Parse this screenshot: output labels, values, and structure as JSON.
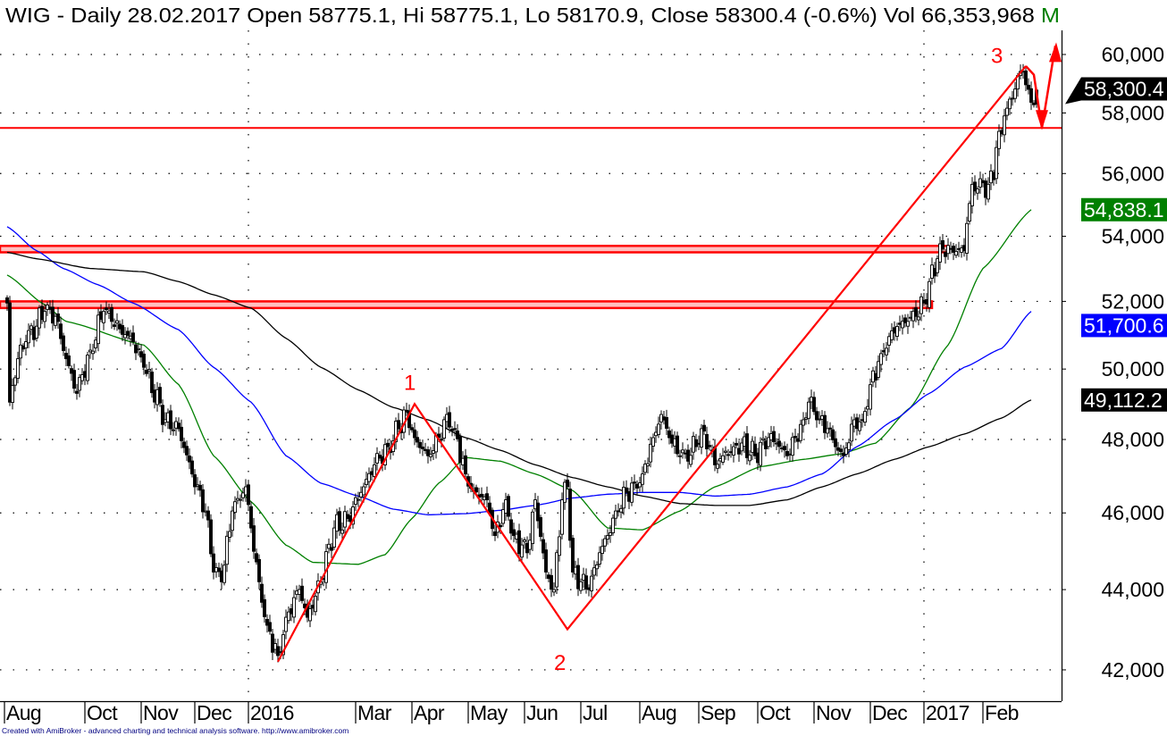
{
  "header": {
    "title": "WIG - Daily 28.02.2017 Open 58775.1, Hi 58775.1, Lo 58170.9, Close 58300.4 (-0.6%) Vol 66,353,968",
    "trailing": "M",
    "trailing_color": "#008000"
  },
  "footer": "Created with AmiBroker - advanced charting and technical analysis software. http://www.amibroker.com",
  "chart_data": {
    "type": "candlestick",
    "title": "WIG - Daily",
    "scale": "log",
    "ylim": [
      41700,
      60800
    ],
    "yticks": [
      {
        "value": 60000,
        "label": "60,000"
      },
      {
        "value": 58000,
        "label": "58,000"
      },
      {
        "value": 56000,
        "label": "56,000"
      },
      {
        "value": 54000,
        "label": "54,000"
      },
      {
        "value": 52000,
        "label": "52,000"
      },
      {
        "value": 50000,
        "label": "50,000"
      },
      {
        "value": 48000,
        "label": "48,000"
      },
      {
        "value": 46000,
        "label": "46,000"
      },
      {
        "value": 44000,
        "label": "44,000"
      },
      {
        "value": 42000,
        "label": "42,000"
      }
    ],
    "xticks": [
      {
        "day": 0,
        "label": "Aug"
      },
      {
        "day": 30,
        "label": "Oct"
      },
      {
        "day": 51,
        "label": "Nov"
      },
      {
        "day": 71,
        "label": "Dec"
      },
      {
        "day": 91,
        "label": "2016"
      },
      {
        "day": 131,
        "label": "Mar"
      },
      {
        "day": 152,
        "label": "Apr"
      },
      {
        "day": 173,
        "label": "May"
      },
      {
        "day": 194,
        "label": "Jun"
      },
      {
        "day": 215,
        "label": "Jul"
      },
      {
        "day": 237,
        "label": "Aug"
      },
      {
        "day": 259,
        "label": "Sep"
      },
      {
        "day": 281,
        "label": "Oct"
      },
      {
        "day": 302,
        "label": "Nov"
      },
      {
        "day": 323,
        "label": "Dec"
      },
      {
        "day": 343,
        "label": "2017"
      },
      {
        "day": 365,
        "label": "Feb"
      }
    ],
    "year_gridlines_days": [
      91,
      343
    ],
    "total_days": 385,
    "close_anchors": [
      [
        0,
        51950
      ],
      [
        1,
        49050
      ],
      [
        4,
        50300
      ],
      [
        7,
        50800
      ],
      [
        14,
        51700
      ],
      [
        18,
        51550
      ],
      [
        22,
        50300
      ],
      [
        26,
        49300
      ],
      [
        31,
        50550
      ],
      [
        36,
        51700
      ],
      [
        39,
        51400
      ],
      [
        47,
        50800
      ],
      [
        51,
        50050
      ],
      [
        59,
        48550
      ],
      [
        64,
        48300
      ],
      [
        69,
        47050
      ],
      [
        74,
        46050
      ],
      [
        77,
        44450
      ],
      [
        80,
        44200
      ],
      [
        84,
        46050
      ],
      [
        89,
        46700
      ],
      [
        91,
        45600
      ],
      [
        94,
        44200
      ],
      [
        97,
        43100
      ],
      [
        101,
        42350
      ],
      [
        104,
        43300
      ],
      [
        109,
        44000
      ],
      [
        112,
        43300
      ],
      [
        117,
        44200
      ],
      [
        122,
        45600
      ],
      [
        127,
        45850
      ],
      [
        132,
        46550
      ],
      [
        137,
        47300
      ],
      [
        142,
        47800
      ],
      [
        146,
        48300
      ],
      [
        149,
        48800
      ],
      [
        152,
        48050
      ],
      [
        157,
        47550
      ],
      [
        161,
        48050
      ],
      [
        164,
        48700
      ],
      [
        167,
        48300
      ],
      [
        171,
        47050
      ],
      [
        174,
        46600
      ],
      [
        179,
        46350
      ],
      [
        182,
        45400
      ],
      [
        186,
        46350
      ],
      [
        189,
        45400
      ],
      [
        194,
        44950
      ],
      [
        197,
        46350
      ],
      [
        201,
        44450
      ],
      [
        204,
        44000
      ],
      [
        207,
        46350
      ],
      [
        209,
        46700
      ],
      [
        211,
        44450
      ],
      [
        214,
        44200
      ],
      [
        217,
        44000
      ],
      [
        221,
        44950
      ],
      [
        224,
        45400
      ],
      [
        227,
        46050
      ],
      [
        231,
        46550
      ],
      [
        234,
        46800
      ],
      [
        237,
        47050
      ],
      [
        241,
        48050
      ],
      [
        244,
        48700
      ],
      [
        247,
        48050
      ],
      [
        251,
        47550
      ],
      [
        254,
        47400
      ],
      [
        259,
        48300
      ],
      [
        262,
        47800
      ],
      [
        264,
        47300
      ],
      [
        267,
        47550
      ],
      [
        271,
        47800
      ],
      [
        274,
        47900
      ],
      [
        279,
        47550
      ],
      [
        284,
        48050
      ],
      [
        287,
        47900
      ],
      [
        291,
        47550
      ],
      [
        294,
        48050
      ],
      [
        297,
        48550
      ],
      [
        299,
        49050
      ],
      [
        302,
        48550
      ],
      [
        306,
        48300
      ],
      [
        309,
        47800
      ],
      [
        312,
        47550
      ],
      [
        316,
        48550
      ],
      [
        319,
        48550
      ],
      [
        322,
        49550
      ],
      [
        326,
        50450
      ],
      [
        329,
        50950
      ],
      [
        332,
        51250
      ],
      [
        336,
        51400
      ],
      [
        339,
        51550
      ],
      [
        342,
        51950
      ],
      [
        344,
        52600
      ],
      [
        347,
        53300
      ],
      [
        349,
        53600
      ],
      [
        352,
        53600
      ],
      [
        357,
        53550
      ],
      [
        358,
        54400
      ],
      [
        360,
        55650
      ],
      [
        362,
        55500
      ],
      [
        366,
        55650
      ],
      [
        368,
        55800
      ],
      [
        369,
        56850
      ],
      [
        371,
        57300
      ],
      [
        372,
        57900
      ],
      [
        375,
        58500
      ],
      [
        377,
        59270
      ],
      [
        379,
        59420
      ],
      [
        381,
        58800
      ],
      [
        382,
        58360
      ],
      [
        384,
        58300.4
      ]
    ],
    "last_bar": {
      "date": "28.02.2017",
      "open": 58775.1,
      "high": 58775.1,
      "low": 58170.9,
      "close": 58300.4,
      "change_pct": -0.6,
      "volume": 66353968
    },
    "series": [
      {
        "name": "MA short",
        "color": "#008000",
        "last_value_label": "54,838.1",
        "last_value": 54838.1,
        "points": [
          [
            0,
            52800
          ],
          [
            14,
            51900
          ],
          [
            22,
            51400
          ],
          [
            51,
            50700
          ],
          [
            64,
            49550
          ],
          [
            77,
            47550
          ],
          [
            91,
            46300
          ],
          [
            104,
            45150
          ],
          [
            114,
            44700
          ],
          [
            131,
            44650
          ],
          [
            141,
            44900
          ],
          [
            151,
            45850
          ],
          [
            161,
            46800
          ],
          [
            171,
            47500
          ],
          [
            184,
            47400
          ],
          [
            197,
            47050
          ],
          [
            211,
            46600
          ],
          [
            224,
            45600
          ],
          [
            237,
            45550
          ],
          [
            251,
            46050
          ],
          [
            264,
            46700
          ],
          [
            281,
            47250
          ],
          [
            297,
            47450
          ],
          [
            311,
            47600
          ],
          [
            324,
            47900
          ],
          [
            337,
            48900
          ],
          [
            351,
            50700
          ],
          [
            364,
            53000
          ],
          [
            382,
            54838.1
          ]
        ]
      },
      {
        "name": "MA medium",
        "color": "#0000ff",
        "last_value_label": "51,700.6",
        "last_value": 51700.6,
        "points": [
          [
            0,
            54300
          ],
          [
            11,
            53550
          ],
          [
            21,
            53000
          ],
          [
            34,
            52500
          ],
          [
            47,
            51950
          ],
          [
            64,
            51150
          ],
          [
            77,
            50050
          ],
          [
            91,
            49050
          ],
          [
            104,
            47550
          ],
          [
            117,
            46800
          ],
          [
            131,
            46450
          ],
          [
            144,
            46100
          ],
          [
            157,
            45950
          ],
          [
            171,
            45980
          ],
          [
            184,
            46070
          ],
          [
            197,
            46200
          ],
          [
            211,
            46400
          ],
          [
            224,
            46500
          ],
          [
            237,
            46550
          ],
          [
            251,
            46550
          ],
          [
            264,
            46450
          ],
          [
            277,
            46500
          ],
          [
            291,
            46700
          ],
          [
            304,
            47050
          ],
          [
            317,
            47800
          ],
          [
            331,
            48550
          ],
          [
            344,
            49300
          ],
          [
            357,
            50050
          ],
          [
            371,
            50600
          ],
          [
            382,
            51700.6
          ]
        ]
      },
      {
        "name": "MA long",
        "color": "#000000",
        "last_value_label": "49,112.2",
        "last_value": 49112.2,
        "points": [
          [
            0,
            53500
          ],
          [
            11,
            53300
          ],
          [
            31,
            53000
          ],
          [
            51,
            52900
          ],
          [
            64,
            52600
          ],
          [
            77,
            52200
          ],
          [
            91,
            51800
          ],
          [
            104,
            50900
          ],
          [
            117,
            50050
          ],
          [
            131,
            49400
          ],
          [
            144,
            48900
          ],
          [
            157,
            48550
          ],
          [
            171,
            48050
          ],
          [
            184,
            47700
          ],
          [
            197,
            47300
          ],
          [
            211,
            46950
          ],
          [
            224,
            46700
          ],
          [
            237,
            46450
          ],
          [
            251,
            46250
          ],
          [
            264,
            46200
          ],
          [
            277,
            46200
          ],
          [
            291,
            46350
          ],
          [
            304,
            46700
          ],
          [
            317,
            47050
          ],
          [
            331,
            47450
          ],
          [
            344,
            47800
          ],
          [
            357,
            48150
          ],
          [
            371,
            48600
          ],
          [
            382,
            49112.2
          ]
        ]
      }
    ],
    "close_label": {
      "value": 58300.4,
      "label": "58,300.4",
      "color": "#000000"
    },
    "horizontal_levels": [
      {
        "name": "resistance-line",
        "price": 57500,
        "end_day": null
      },
      {
        "name": "resistance-band-upper",
        "from": 53500,
        "to": 53700,
        "end_day": 351
      },
      {
        "name": "resistance-band-lower",
        "from": 51800,
        "to": 52000,
        "end_day": 345
      }
    ],
    "zigzag": [
      [
        101,
        42200
      ],
      [
        152,
        49000
      ],
      [
        209,
        43000
      ],
      [
        380,
        59600
      ]
    ],
    "projection": [
      [
        380,
        59600
      ],
      [
        383,
        59300
      ],
      [
        386,
        57500
      ],
      [
        391,
        60300
      ]
    ],
    "annotations": [
      {
        "text": "1",
        "day": 150,
        "price": 49400
      },
      {
        "text": "2",
        "day": 206,
        "price": 42000
      },
      {
        "text": "3",
        "day": 369,
        "price": 59700
      }
    ],
    "annotation_color": "#ff0000"
  }
}
